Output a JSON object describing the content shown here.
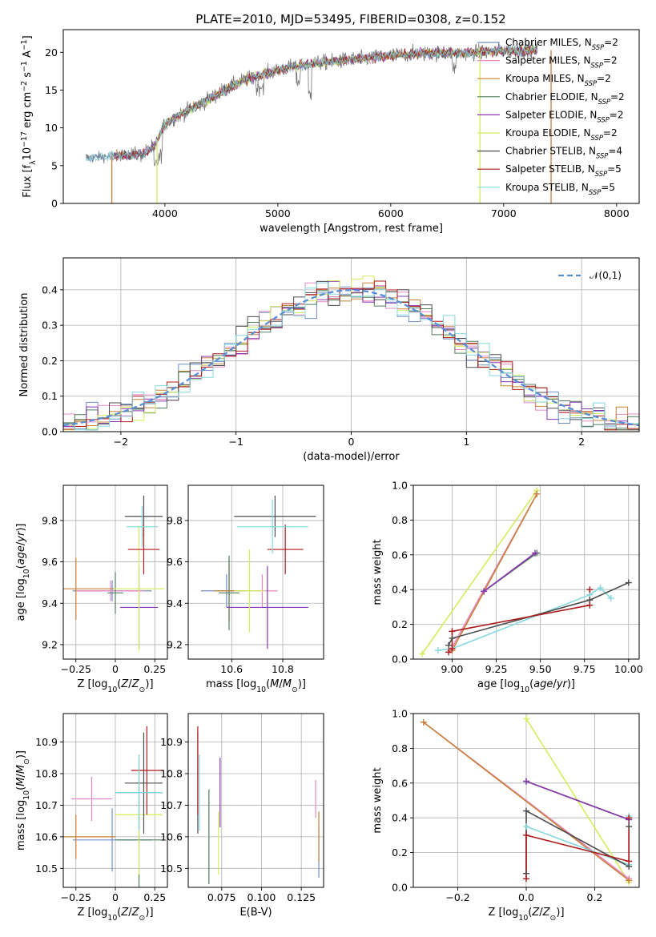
{
  "figure": {
    "title": "PLATE=2010, MJD=53495, FIBERID=0308, z=0.152"
  },
  "models": [
    {
      "name": "Chabrier MILES, N_SSP=2",
      "name_main": "Chabrier MILES, N",
      "name_sub": "SSP",
      "name_tail": "=2",
      "color": "#6f8fc6"
    },
    {
      "name": "Salpeter MILES, N_SSP=2",
      "name_main": "Salpeter MILES, N",
      "name_sub": "SSP",
      "name_tail": "=2",
      "color": "#e58ac7"
    },
    {
      "name": "Kroupa MILES, N_SSP=2",
      "name_main": "Kroupa MILES, N",
      "name_sub": "SSP",
      "name_tail": "=2",
      "color": "#c9803a"
    },
    {
      "name": "Chabrier ELODIE, N_SSP=2",
      "name_main": "Chabrier ELODIE, N",
      "name_sub": "SSP",
      "name_tail": "=2",
      "color": "#4f7f5a"
    },
    {
      "name": "Salpeter ELODIE, N_SSP=2",
      "name_main": "Salpeter ELODIE, N",
      "name_sub": "SSP",
      "name_tail": "=2",
      "color": "#8a35b0"
    },
    {
      "name": "Kroupa ELODIE, N_SSP=2",
      "name_main": "Kroupa ELODIE, N",
      "name_sub": "SSP",
      "name_tail": "=2",
      "color": "#d4ec5c"
    },
    {
      "name": "Chabrier STELIB, N_SSP=4",
      "name_main": "Chabrier STELIB, N",
      "name_sub": "SSP",
      "name_tail": "=4",
      "color": "#4d4d4d"
    },
    {
      "name": "Salpeter STELIB, N_SSP=5",
      "name_main": "Salpeter STELIB, N",
      "name_sub": "SSP",
      "name_tail": "=5",
      "color": "#b01a1a"
    },
    {
      "name": "Kroupa STELIB, N_SSP=5",
      "name_main": "Kroupa STELIB, N",
      "name_sub": "SSP",
      "name_tail": "=5",
      "color": "#86d8e0"
    }
  ],
  "chart_data": [
    {
      "id": "spectrum",
      "type": "line",
      "xlabel": "wavelength [Angstrom, rest frame]",
      "ylabel": "Flux [fλ10^-17 erg cm^-2 s^-1 A^-1]",
      "xlim": [
        3100,
        8200
      ],
      "ylim": [
        0,
        23
      ],
      "xticks": [
        4000,
        5000,
        6000,
        7000,
        8000
      ],
      "yticks": [
        0,
        5,
        10,
        15,
        20
      ],
      "grid": false,
      "legend": "top-right",
      "data_color": "#777777",
      "envelope": [
        [
          3300,
          6.0
        ],
        [
          3550,
          6.3
        ],
        [
          3800,
          6.5
        ],
        [
          3900,
          7.5
        ],
        [
          4000,
          10.5
        ],
        [
          4100,
          11.5
        ],
        [
          4300,
          13.0
        ],
        [
          4500,
          14.8
        ],
        [
          4700,
          16.3
        ],
        [
          4900,
          17.2
        ],
        [
          5100,
          18.0
        ],
        [
          5300,
          18.5
        ],
        [
          5500,
          18.8
        ],
        [
          5800,
          19.2
        ],
        [
          6000,
          19.6
        ],
        [
          6200,
          19.8
        ],
        [
          6500,
          19.9
        ],
        [
          6800,
          20.0
        ],
        [
          7000,
          20.2
        ],
        [
          7300,
          20.3
        ]
      ],
      "drops": [
        [
          3530,
          "#c9803a"
        ],
        [
          3930,
          "#d4ec5c"
        ],
        [
          6790,
          "#d4ec5c"
        ],
        [
          7420,
          "#c9803a"
        ]
      ]
    },
    {
      "id": "residuals",
      "type": "step",
      "xlabel": "(data-model)/error",
      "ylabel": "Normed distribution",
      "xlim": [
        -2.5,
        2.5
      ],
      "ylim": [
        0,
        0.49
      ],
      "xticks": [
        -2,
        -1,
        0,
        1,
        2
      ],
      "yticks": [
        0.0,
        0.1,
        0.2,
        0.3,
        0.4
      ],
      "grid": true,
      "legend": "top-right",
      "reference": {
        "name": "𝒩(0,1)",
        "mean": 0,
        "sigma": 1,
        "color": "#5a8fd8"
      }
    },
    {
      "id": "z-age",
      "type": "errorbar",
      "xlabel": "Z [log10(Z/Z⊙)]",
      "ylabel": "age [log10(age/yr)]",
      "xlim": [
        -0.33,
        0.33
      ],
      "ylim": [
        9.13,
        9.97
      ],
      "xticks": [
        -0.25,
        0.0,
        0.25
      ],
      "yticks": [
        9.2,
        9.4,
        9.6,
        9.8
      ],
      "grid": true,
      "points": [
        {
          "model": 0,
          "x": -0.02,
          "xerr": 0.25,
          "y": 9.46,
          "yerr": 0.05
        },
        {
          "model": 1,
          "x": -0.03,
          "xerr": 0.22,
          "y": 9.46,
          "yerr": 0.05
        },
        {
          "model": 2,
          "x": -0.25,
          "xerr": 0.25,
          "y": 9.47,
          "yerr": 0.15
        },
        {
          "model": 3,
          "x": 0.0,
          "xerr": 0.05,
          "y": 9.45,
          "yerr": 0.1
        },
        {
          "model": 4,
          "x": 0.15,
          "xerr": 0.12,
          "y": 9.38,
          "yerr": 0.2
        },
        {
          "model": 5,
          "x": 0.15,
          "xerr": 0.16,
          "y": 9.47,
          "yerr": 0.3
        },
        {
          "model": 6,
          "x": 0.18,
          "xerr": 0.12,
          "y": 9.82,
          "yerr": 0.1
        },
        {
          "model": 7,
          "x": 0.18,
          "xerr": 0.1,
          "y": 9.66,
          "yerr": 0.12
        },
        {
          "model": 8,
          "x": 0.17,
          "xerr": 0.1,
          "y": 9.77,
          "yerr": 0.1
        }
      ]
    },
    {
      "id": "mass-age",
      "type": "errorbar",
      "xlabel": "mass [log10(M/M⊙)]",
      "ylabel": "",
      "xlim": [
        10.43,
        10.96
      ],
      "ylim": [
        9.13,
        9.97
      ],
      "xticks": [
        10.6,
        10.8
      ],
      "yticks": [
        9.2,
        9.4,
        9.6,
        9.8
      ],
      "grid": true,
      "points": [
        {
          "model": 0,
          "x": 10.58,
          "xerr": 0.1,
          "y": 9.46,
          "yerr": 0.08
        },
        {
          "model": 1,
          "x": 10.72,
          "xerr": 0.06,
          "y": 9.46,
          "yerr": 0.08
        },
        {
          "model": 2,
          "x": 10.59,
          "xerr": 0.06,
          "y": 9.46,
          "yerr": 0.15
        },
        {
          "model": 3,
          "x": 10.59,
          "xerr": 0.04,
          "y": 9.45,
          "yerr": 0.18
        },
        {
          "model": 4,
          "x": 10.74,
          "xerr": 0.16,
          "y": 9.38,
          "yerr": 0.2
        },
        {
          "model": 5,
          "x": 10.67,
          "xerr": 0.06,
          "y": 9.46,
          "yerr": 0.2
        },
        {
          "model": 6,
          "x": 10.77,
          "xerr": 0.16,
          "y": 9.82,
          "yerr": 0.1
        },
        {
          "model": 7,
          "x": 10.81,
          "xerr": 0.07,
          "y": 9.66,
          "yerr": 0.12
        },
        {
          "model": 8,
          "x": 10.76,
          "xerr": 0.14,
          "y": 9.77,
          "yerr": 0.13
        }
      ]
    },
    {
      "id": "age-weight",
      "type": "line",
      "xlabel": "age [log10(age/yr)]",
      "ylabel": "mass weight",
      "xlim": [
        8.78,
        10.06
      ],
      "ylim": [
        0,
        1.0
      ],
      "xticks": [
        9.0,
        9.25,
        9.5,
        9.75,
        10.0
      ],
      "xtick_labels": [
        "9.00",
        "9.25",
        "9.50",
        "9.75",
        "10.00"
      ],
      "yticks": [
        0.0,
        0.2,
        0.4,
        0.6,
        0.8,
        1.0
      ],
      "grid": true,
      "series": [
        {
          "model": 5,
          "points": [
            [
              8.83,
              0.03
            ],
            [
              9.48,
              0.97
            ]
          ]
        },
        {
          "model": 1,
          "points": [
            [
              8.99,
              0.05
            ],
            [
              9.48,
              0.95
            ]
          ]
        },
        {
          "model": 2,
          "points": [
            [
              9.0,
              0.05
            ],
            [
              9.48,
              0.95
            ]
          ]
        },
        {
          "model": 3,
          "points": [
            [
              9.18,
              0.39
            ],
            [
              9.48,
              0.61
            ]
          ]
        },
        {
          "model": 4,
          "points": [
            [
              9.18,
              0.39
            ],
            [
              9.47,
              0.61
            ]
          ]
        },
        {
          "model": 8,
          "points": [
            [
              8.92,
              0.05
            ],
            [
              9.0,
              0.06
            ],
            [
              9.78,
              0.37
            ],
            [
              9.84,
              0.41
            ],
            [
              9.9,
              0.35
            ]
          ]
        },
        {
          "model": 6,
          "points": [
            [
              8.98,
              0.08
            ],
            [
              9.0,
              0.12
            ],
            [
              9.78,
              0.34
            ],
            [
              10.0,
              0.44
            ]
          ]
        },
        {
          "model": 7,
          "points": [
            [
              8.98,
              0.04
            ],
            [
              9.0,
              0.06
            ],
            [
              9.0,
              0.16
            ],
            [
              9.78,
              0.31
            ],
            [
              9.78,
              0.4
            ]
          ]
        }
      ]
    },
    {
      "id": "z-mass",
      "type": "errorbar",
      "xlabel": "Z [log10(Z/Z⊙)]",
      "ylabel": "mass [log10(M/M⊙)]",
      "xlim": [
        -0.33,
        0.33
      ],
      "ylim": [
        10.44,
        10.99
      ],
      "xticks": [
        -0.25,
        0.0,
        0.25
      ],
      "yticks": [
        10.5,
        10.6,
        10.7,
        10.8,
        10.9
      ],
      "grid": true,
      "points": [
        {
          "model": 0,
          "x": -0.02,
          "xerr": 0.25,
          "y": 10.59,
          "yerr": 0.1
        },
        {
          "model": 1,
          "x": -0.15,
          "xerr": 0.13,
          "y": 10.72,
          "yerr": 0.07
        },
        {
          "model": 2,
          "x": -0.25,
          "xerr": 0.25,
          "y": 10.6,
          "yerr": 0.07
        },
        {
          "model": 3,
          "x": 0.15,
          "xerr": 0.15,
          "y": 10.59,
          "yerr": 0.16
        },
        {
          "model": 4,
          "x": 0.15,
          "xerr": 0.15,
          "y": 10.74,
          "yerr": 0.11
        },
        {
          "model": 5,
          "x": 0.15,
          "xerr": 0.15,
          "y": 10.67,
          "yerr": 0.19
        },
        {
          "model": 6,
          "x": 0.18,
          "xerr": 0.12,
          "y": 10.77,
          "yerr": 0.16
        },
        {
          "model": 7,
          "x": 0.2,
          "xerr": 0.1,
          "y": 10.81,
          "yerr": 0.14
        },
        {
          "model": 8,
          "x": 0.15,
          "xerr": 0.15,
          "y": 10.74,
          "yerr": 0.12
        }
      ]
    },
    {
      "id": "ebv-mass",
      "type": "errorbar",
      "xlabel": "E(B-V)",
      "ylabel": "",
      "xlim": [
        0.054,
        0.139
      ],
      "ylim": [
        10.44,
        10.99
      ],
      "xticks": [
        0.075,
        0.1,
        0.125
      ],
      "xtick_labels": [
        "0.075",
        "0.100",
        "0.125"
      ],
      "yticks": [
        10.5,
        10.6,
        10.7,
        10.8,
        10.9
      ],
      "grid": true,
      "points": [
        {
          "model": 0,
          "x": 0.136,
          "xerr": 0,
          "y": 10.55,
          "yerr": 0.08
        },
        {
          "model": 1,
          "x": 0.134,
          "xerr": 0,
          "y": 10.72,
          "yerr": 0.06
        },
        {
          "model": 2,
          "x": 0.136,
          "xerr": 0,
          "y": 10.6,
          "yerr": 0.08
        },
        {
          "model": 3,
          "x": 0.067,
          "xerr": 0,
          "y": 10.6,
          "yerr": 0.15
        },
        {
          "model": 4,
          "x": 0.074,
          "xerr": 0,
          "y": 10.74,
          "yerr": 0.11
        },
        {
          "model": 5,
          "x": 0.073,
          "xerr": 0,
          "y": 10.58,
          "yerr": 0.1
        },
        {
          "model": 6,
          "x": 0.06,
          "xerr": 0,
          "y": 10.77,
          "yerr": 0.16
        },
        {
          "model": 7,
          "x": 0.06,
          "xerr": 0,
          "y": 10.81,
          "yerr": 0.14
        },
        {
          "model": 8,
          "x": 0.061,
          "xerr": 0,
          "y": 10.74,
          "yerr": 0.12
        }
      ]
    },
    {
      "id": "z-weight",
      "type": "line",
      "xlabel": "Z [log10(Z/Z⊙)]",
      "ylabel": "mass weight",
      "xlim": [
        -0.33,
        0.33
      ],
      "ylim": [
        0,
        1.0
      ],
      "xticks": [
        -0.2,
        0.0,
        0.2
      ],
      "xtick_labels": [
        "−0.2",
        "0.0",
        "0.2"
      ],
      "yticks": [
        0.0,
        0.2,
        0.4,
        0.6,
        0.8,
        1.0
      ],
      "grid": true,
      "series": [
        {
          "model": 5,
          "points": [
            [
              0.0,
              0.97
            ],
            [
              0.3,
              0.03
            ]
          ]
        },
        {
          "model": 1,
          "points": [
            [
              -0.3,
              0.95
            ],
            [
              0.3,
              0.05
            ]
          ]
        },
        {
          "model": 2,
          "points": [
            [
              -0.3,
              0.95
            ],
            [
              0.3,
              0.04
            ]
          ]
        },
        {
          "model": 3,
          "points": [
            [
              0.0,
              0.61
            ],
            [
              0.3,
              0.39
            ]
          ]
        },
        {
          "model": 4,
          "points": [
            [
              0.0,
              0.61
            ],
            [
              0.3,
              0.39
            ]
          ]
        },
        {
          "model": 8,
          "points": [
            [
              0.0,
              0.05
            ],
            [
              0.0,
              0.35
            ],
            [
              0.3,
              0.13
            ],
            [
              0.3,
              0.41
            ]
          ]
        },
        {
          "model": 6,
          "points": [
            [
              0.0,
              0.08
            ],
            [
              0.0,
              0.44
            ],
            [
              0.3,
              0.12
            ],
            [
              0.3,
              0.35
            ]
          ]
        },
        {
          "model": 7,
          "points": [
            [
              0.0,
              0.05
            ],
            [
              0.0,
              0.3
            ],
            [
              0.3,
              0.15
            ],
            [
              0.3,
              0.4
            ]
          ]
        }
      ]
    }
  ]
}
